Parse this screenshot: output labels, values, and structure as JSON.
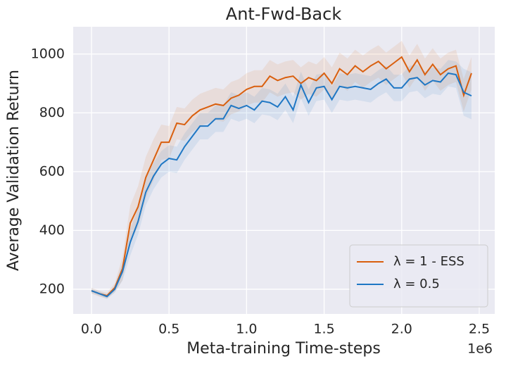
{
  "chart_data": {
    "type": "line",
    "title": "Ant-Fwd-Back",
    "x_label": "Meta-training Time-steps",
    "y_label": "Average Validation Return",
    "x_offset_label": "1e6",
    "x": [
      0,
      0.05,
      0.1,
      0.15,
      0.2,
      0.25,
      0.3,
      0.35,
      0.4,
      0.45,
      0.5,
      0.55,
      0.6,
      0.65,
      0.7,
      0.75,
      0.8,
      0.85,
      0.9,
      0.95,
      1.0,
      1.05,
      1.1,
      1.15,
      1.2,
      1.25,
      1.3,
      1.35,
      1.4,
      1.45,
      1.5,
      1.55,
      1.6,
      1.65,
      1.7,
      1.75,
      1.8,
      1.85,
      1.9,
      1.95,
      2.0,
      2.05,
      2.1,
      2.15,
      2.2,
      2.25,
      2.3,
      2.35,
      2.4,
      2.45
    ],
    "series": [
      {
        "name": "λ = 1 - ESS",
        "color": "#d95f0e",
        "values": [
          195,
          185,
          178,
          205,
          270,
          425,
          480,
          580,
          640,
          700,
          700,
          765,
          760,
          790,
          810,
          820,
          830,
          825,
          850,
          860,
          880,
          890,
          890,
          925,
          910,
          920,
          925,
          900,
          920,
          910,
          935,
          900,
          950,
          930,
          960,
          940,
          960,
          975,
          950,
          970,
          990,
          940,
          980,
          930,
          965,
          930,
          950,
          960,
          860,
          935
        ],
        "band_lower": [
          185,
          175,
          168,
          190,
          230,
          365,
          410,
          510,
          570,
          640,
          645,
          710,
          705,
          735,
          755,
          765,
          775,
          770,
          795,
          805,
          825,
          835,
          835,
          870,
          855,
          865,
          870,
          845,
          865,
          855,
          880,
          845,
          895,
          875,
          905,
          885,
          905,
          920,
          895,
          915,
          935,
          885,
          925,
          875,
          910,
          875,
          895,
          905,
          805,
          880
        ],
        "band_upper": [
          205,
          195,
          188,
          220,
          310,
          485,
          550,
          650,
          710,
          760,
          755,
          820,
          815,
          845,
          865,
          875,
          885,
          880,
          905,
          915,
          935,
          945,
          945,
          980,
          965,
          975,
          980,
          955,
          975,
          965,
          990,
          955,
          1005,
          985,
          1015,
          995,
          1015,
          1030,
          1005,
          1025,
          1045,
          995,
          1035,
          985,
          1020,
          985,
          1005,
          1015,
          915,
          990
        ]
      },
      {
        "name": "λ = 0.5",
        "color": "#1f77c4",
        "values": [
          195,
          185,
          175,
          200,
          260,
          360,
          430,
          530,
          585,
          625,
          645,
          640,
          685,
          720,
          755,
          755,
          780,
          780,
          825,
          815,
          825,
          810,
          840,
          835,
          820,
          855,
          810,
          895,
          835,
          885,
          890,
          845,
          890,
          885,
          890,
          885,
          880,
          900,
          915,
          885,
          885,
          915,
          920,
          895,
          910,
          905,
          935,
          930,
          870,
          858
        ],
        "band_lower": [
          187,
          177,
          167,
          188,
          230,
          315,
          385,
          485,
          540,
          580,
          600,
          595,
          640,
          675,
          710,
          710,
          735,
          735,
          780,
          770,
          780,
          765,
          795,
          790,
          775,
          810,
          765,
          850,
          790,
          840,
          845,
          800,
          845,
          840,
          845,
          840,
          835,
          855,
          870,
          840,
          840,
          870,
          875,
          850,
          865,
          860,
          890,
          885,
          790,
          778
        ],
        "band_upper": [
          203,
          193,
          183,
          212,
          290,
          405,
          475,
          575,
          630,
          670,
          690,
          685,
          730,
          765,
          800,
          800,
          825,
          825,
          870,
          860,
          870,
          855,
          885,
          880,
          865,
          900,
          855,
          940,
          880,
          930,
          935,
          890,
          935,
          930,
          935,
          930,
          925,
          945,
          960,
          930,
          930,
          960,
          965,
          940,
          955,
          950,
          980,
          975,
          950,
          938
        ]
      }
    ],
    "xlim": [
      -0.118,
      2.6
    ],
    "ylim": [
      116,
      1093
    ],
    "xticks": [
      {
        "value": 0,
        "label": "0.0"
      },
      0.5,
      {
        "value": 1,
        "label": "1.0"
      },
      1.5,
      {
        "value": 2,
        "label": "2.0"
      },
      2.5
    ],
    "yticks": [
      200,
      400,
      600,
      800,
      1000
    ],
    "grid": true,
    "legend": "lower right"
  }
}
